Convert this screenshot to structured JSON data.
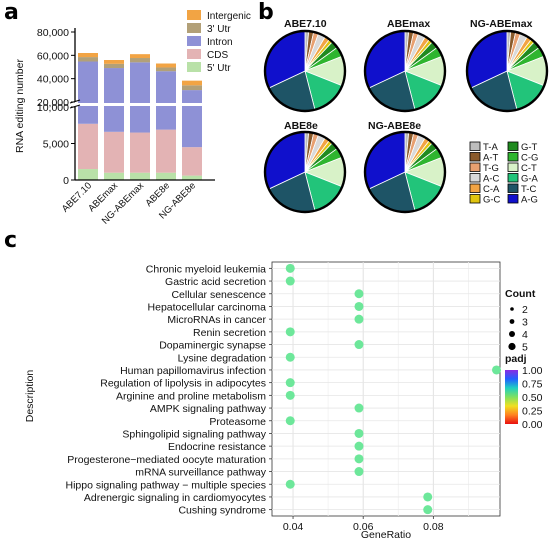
{
  "panels": {
    "a": "a",
    "b": "b",
    "c": "c"
  },
  "chart_data": [
    {
      "type": "bar",
      "stacked": true,
      "broken_y_axis": true,
      "ylabel": "RNA editing number",
      "categories": [
        "ABE7.10",
        "ABEmax",
        "NG-ABEmax",
        "ABE8e",
        "NG-ABE8e"
      ],
      "y_ticks_lower": [
        "0",
        "5,000",
        "10,000"
      ],
      "y_ticks_upper": [
        "20,000",
        "40,000",
        "60,000",
        "80,000"
      ],
      "ylim_lower": [
        0,
        10000
      ],
      "ylim_upper": [
        20000,
        80000
      ],
      "series": [
        {
          "name": "5' Utr",
          "color": "#b9e1a8",
          "values": [
            1500,
            1000,
            1000,
            1000,
            600
          ]
        },
        {
          "name": "CDS",
          "color": "#e3b3b4",
          "values": [
            6200,
            5600,
            5500,
            5900,
            3900
          ]
        },
        {
          "name": "Intron",
          "color": "#8e91d6",
          "values": [
            47000,
            42500,
            47500,
            39500,
            25700
          ]
        },
        {
          "name": "3' Utr",
          "color": "#b2a078",
          "values": [
            3800,
            3600,
            3700,
            3200,
            4100
          ]
        },
        {
          "name": "Intergenic",
          "color": "#f2a444",
          "values": [
            3500,
            3300,
            3300,
            3400,
            4000
          ]
        }
      ],
      "legend": {
        "position": "top-right",
        "order": [
          "Intergenic",
          "3' Utr",
          "Intron",
          "CDS",
          "5' Utr"
        ]
      }
    },
    {
      "type": "pie",
      "legend_columns": [
        [
          "T-A",
          "A-T",
          "T-G",
          "A-C",
          "C-A",
          "G-C"
        ],
        [
          "G-T",
          "C-G",
          "C-T",
          "G-A",
          "T-C",
          "A-G"
        ]
      ],
      "slice_colors": {
        "T-A": "#bdbdbd",
        "A-T": "#8a5a2b",
        "T-G": "#e8a070",
        "A-C": "#d9d9d9",
        "C-A": "#f2a444",
        "G-C": "#e0c410",
        "G-T": "#1f8a1f",
        "C-G": "#2fb52f",
        "C-T": "#d8f2c8",
        "G-A": "#22c47a",
        "T-C": "#1e5466",
        "A-G": "#1010cc"
      },
      "pies": [
        {
          "title": "ABE7.10",
          "values": {
            "T-A": 1.5,
            "A-T": 2,
            "T-G": 2,
            "A-C": 3,
            "C-A": 2,
            "G-C": 1.5,
            "G-T": 3,
            "C-G": 4,
            "C-T": 12,
            "G-A": 15,
            "T-C": 22,
            "A-G": 32
          }
        },
        {
          "title": "ABEmax",
          "values": {
            "T-A": 1.5,
            "A-T": 2,
            "T-G": 2,
            "A-C": 3,
            "C-A": 2,
            "G-C": 1.5,
            "G-T": 3,
            "C-G": 4,
            "C-T": 12,
            "G-A": 15,
            "T-C": 22,
            "A-G": 32
          }
        },
        {
          "title": "NG-ABEmax",
          "values": {
            "T-A": 1.5,
            "A-T": 2,
            "T-G": 2,
            "A-C": 3,
            "C-A": 2,
            "G-C": 1.5,
            "G-T": 3,
            "C-G": 4,
            "C-T": 12,
            "G-A": 15,
            "T-C": 22,
            "A-G": 32
          }
        },
        {
          "title": "ABE8e",
          "values": {
            "T-A": 1.5,
            "A-T": 2,
            "T-G": 2,
            "A-C": 3,
            "C-A": 2,
            "G-C": 1.5,
            "G-T": 3,
            "C-G": 4,
            "C-T": 12,
            "G-A": 15,
            "T-C": 22,
            "A-G": 32
          }
        },
        {
          "title": "NG-ABE8e",
          "values": {
            "T-A": 1.5,
            "A-T": 2,
            "T-G": 2,
            "A-C": 3,
            "C-A": 2,
            "G-C": 1.5,
            "G-T": 3,
            "C-G": 4,
            "C-T": 12,
            "G-A": 15,
            "T-C": 22,
            "A-G": 32
          }
        }
      ]
    },
    {
      "type": "scatter",
      "xlabel": "GeneRatio",
      "ylabel": "Description",
      "x_ticks": [
        0.04,
        0.06,
        0.08
      ],
      "xlim": [
        0.034,
        0.099
      ],
      "grid": true,
      "point_color": "#6de79a",
      "points": [
        {
          "label": "Chronic myeloid leukemia",
          "x": 0.0392,
          "count": 2,
          "padj": 0.5
        },
        {
          "label": "Gastric acid secretion",
          "x": 0.0392,
          "count": 2,
          "padj": 0.5
        },
        {
          "label": "Cellular senescence",
          "x": 0.0588,
          "count": 3,
          "padj": 0.5
        },
        {
          "label": "Hepatocellular carcinoma",
          "x": 0.0588,
          "count": 3,
          "padj": 0.5
        },
        {
          "label": "MicroRNAs in cancer",
          "x": 0.0588,
          "count": 3,
          "padj": 0.5
        },
        {
          "label": "Renin secretion",
          "x": 0.0392,
          "count": 2,
          "padj": 0.5
        },
        {
          "label": "Dopaminergic synapse",
          "x": 0.0588,
          "count": 3,
          "padj": 0.5
        },
        {
          "label": "Lysine degradation",
          "x": 0.0392,
          "count": 2,
          "padj": 0.5
        },
        {
          "label": "Human papillomavirus infection",
          "x": 0.098,
          "count": 5,
          "padj": 0.5
        },
        {
          "label": "Regulation of lipolysis in adipocytes",
          "x": 0.0392,
          "count": 2,
          "padj": 0.5
        },
        {
          "label": "Arginine and proline metabolism",
          "x": 0.0392,
          "count": 2,
          "padj": 0.5
        },
        {
          "label": "AMPK signaling pathway",
          "x": 0.0588,
          "count": 3,
          "padj": 0.5
        },
        {
          "label": "Proteasome",
          "x": 0.0392,
          "count": 2,
          "padj": 0.5
        },
        {
          "label": "Sphingolipid signaling pathway",
          "x": 0.0588,
          "count": 3,
          "padj": 0.5
        },
        {
          "label": "Endocrine resistance",
          "x": 0.0588,
          "count": 3,
          "padj": 0.5
        },
        {
          "label": "Progesterone−mediated oocyte maturation",
          "x": 0.0588,
          "count": 3,
          "padj": 0.5
        },
        {
          "label": "mRNA surveillance pathway",
          "x": 0.0588,
          "count": 3,
          "padj": 0.5
        },
        {
          "label": "Hippo signaling pathway − multiple species",
          "x": 0.0392,
          "count": 2,
          "padj": 0.5
        },
        {
          "label": "Adrenergic signaling in cardiomyocytes",
          "x": 0.0784,
          "count": 4,
          "padj": 0.5
        },
        {
          "label": "Cushing syndrome",
          "x": 0.0784,
          "count": 4,
          "padj": 0.5
        }
      ],
      "size_legend": {
        "title": "Count",
        "values": [
          2,
          3,
          4,
          5
        ]
      },
      "color_legend": {
        "title": "padj",
        "ticks": [
          "1.00",
          "0.75",
          "0.50",
          "0.25",
          "0.00"
        ],
        "colors": [
          "#8a2be2",
          "#2060ff",
          "#20d0c0",
          "#7fe060",
          "#f0e020",
          "#ff8020",
          "#e81010"
        ]
      }
    }
  ]
}
